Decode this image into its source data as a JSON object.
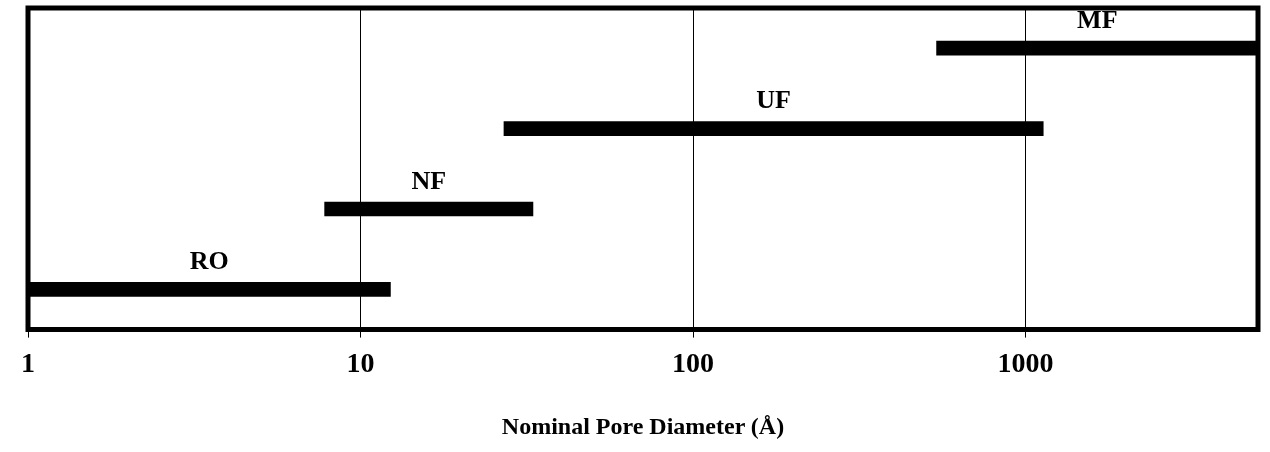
{
  "chart_data": {
    "type": "bar",
    "orientation": "horizontal",
    "xlabel": "Nominal Pore Diameter (Å)",
    "categories": [
      "MF",
      "UF",
      "NF",
      "RO"
    ],
    "base": [
      540,
      27,
      7.8,
      1
    ],
    "values": [
      4460,
      1103,
      25.2,
      11.3
    ],
    "color": "#000000",
    "log": "x",
    "xlim": [
      1,
      5000
    ],
    "xticks": [
      1,
      10,
      100,
      1000
    ],
    "tick_labels": "x",
    "grid": "x",
    "legend": false
  }
}
